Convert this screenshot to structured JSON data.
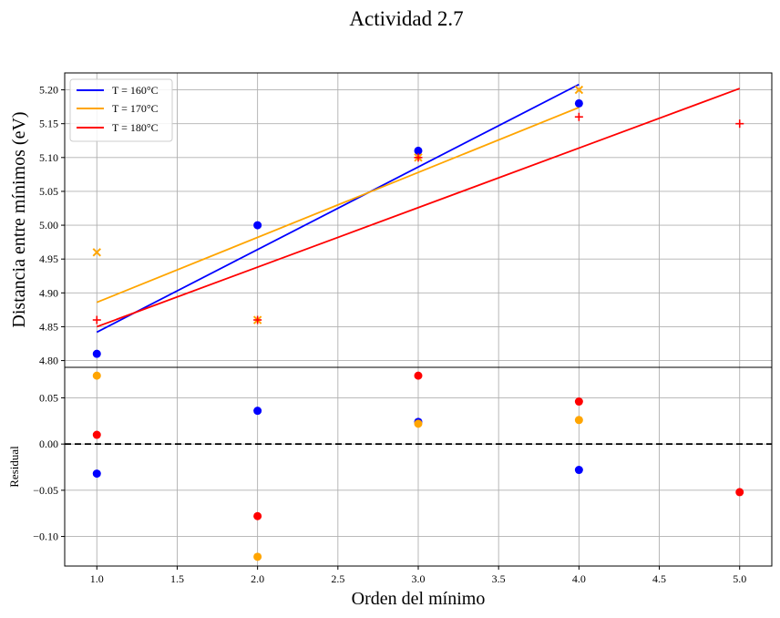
{
  "title": "Actividad 2.7",
  "chart_data": [
    {
      "type": "scatter",
      "panel": "top",
      "xlabel": "",
      "ylabel": "Distancia entre mínimos (eV)",
      "xlim": [
        0.8,
        5.2
      ],
      "ylim": [
        4.79,
        5.225
      ],
      "grid": true,
      "legend_placement": "upper-left",
      "yticks": [
        4.8,
        4.85,
        4.9,
        4.95,
        5.0,
        5.05,
        5.1,
        5.15,
        5.2
      ],
      "ytick_labels": [
        "4.80",
        "4.85",
        "4.90",
        "4.95",
        "5.00",
        "5.05",
        "5.10",
        "5.15",
        "5.20"
      ],
      "series": [
        {
          "name": "T = 160°C",
          "color": "#0000ff",
          "marker": "circle",
          "x": [
            1,
            2,
            3,
            4
          ],
          "y": [
            4.81,
            5.0,
            5.11,
            5.18
          ],
          "fit": {
            "x": [
              1,
              4
            ],
            "y": [
              4.842,
              5.208
            ]
          }
        },
        {
          "name": "T = 170°C",
          "color": "#ffa500",
          "marker": "x",
          "x": [
            1,
            2,
            3,
            4
          ],
          "y": [
            4.96,
            4.86,
            5.1,
            5.2
          ],
          "fit": {
            "x": [
              1,
              4
            ],
            "y": [
              4.886,
              5.174
            ]
          }
        },
        {
          "name": "T = 180°C",
          "color": "#ff0000",
          "marker": "plus",
          "x": [
            1,
            2,
            3,
            4,
            5
          ],
          "y": [
            4.86,
            4.86,
            5.1,
            5.16,
            5.15
          ],
          "fit": {
            "x": [
              1,
              5
            ],
            "y": [
              4.85,
              5.202
            ]
          }
        }
      ]
    },
    {
      "type": "scatter",
      "panel": "bottom",
      "xlabel": "Orden del mínimo",
      "ylabel": "Residual",
      "xlim": [
        0.8,
        5.2
      ],
      "ylim": [
        -0.132,
        0.083
      ],
      "grid": true,
      "reference_line": {
        "y": 0,
        "style": "dashed",
        "color": "#000000"
      },
      "xticks": [
        1.0,
        1.5,
        2.0,
        2.5,
        3.0,
        3.5,
        4.0,
        4.5,
        5.0
      ],
      "xtick_labels": [
        "1.0",
        "1.5",
        "2.0",
        "2.5",
        "3.0",
        "3.5",
        "4.0",
        "4.5",
        "5.0"
      ],
      "yticks": [
        -0.1,
        -0.05,
        0.0,
        0.05
      ],
      "ytick_labels": [
        "−0.10",
        "−0.05",
        "0.00",
        "0.05"
      ],
      "series": [
        {
          "color": "#0000ff",
          "x": [
            1,
            2,
            3,
            4
          ],
          "y": [
            -0.032,
            0.036,
            0.024,
            -0.028
          ]
        },
        {
          "color": "#ffa500",
          "x": [
            1,
            2,
            3,
            4
          ],
          "y": [
            0.074,
            -0.122,
            0.022,
            0.026
          ]
        },
        {
          "color": "#ff0000",
          "x": [
            1,
            2,
            3,
            4,
            5
          ],
          "y": [
            0.01,
            -0.078,
            0.074,
            0.046,
            -0.052
          ]
        }
      ]
    }
  ]
}
